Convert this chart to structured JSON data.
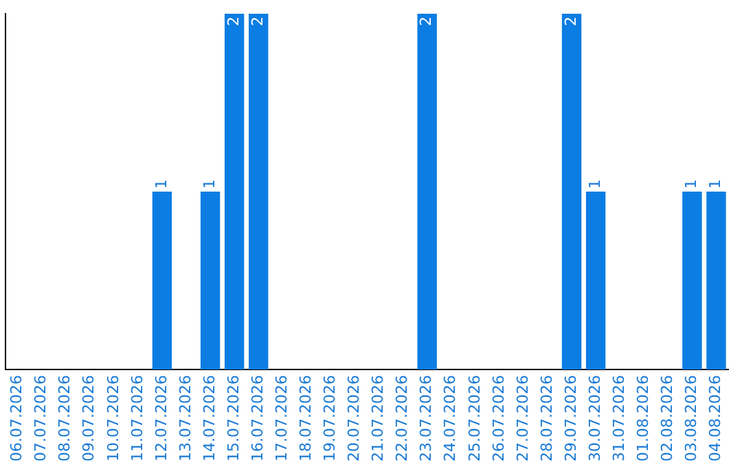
{
  "chart_data": {
    "type": "bar",
    "categories": [
      "06.07.2026",
      "07.07.2026",
      "08.07.2026",
      "09.07.2026",
      "10.07.2026",
      "11.07.2026",
      "12.07.2026",
      "13.07.2026",
      "14.07.2026",
      "15.07.2026",
      "16.07.2026",
      "17.07.2026",
      "18.07.2026",
      "19.07.2026",
      "20.07.2026",
      "21.07.2026",
      "22.07.2026",
      "23.07.2026",
      "24.07.2026",
      "25.07.2026",
      "26.07.2026",
      "27.07.2026",
      "28.07.2026",
      "29.07.2026",
      "30.07.2026",
      "31.07.2026",
      "01.08.2026",
      "02.08.2026",
      "03.08.2026",
      "04.08.2026"
    ],
    "values": [
      0,
      0,
      0,
      0,
      0,
      0,
      1,
      0,
      1,
      2,
      2,
      0,
      0,
      0,
      0,
      0,
      0,
      2,
      0,
      0,
      0,
      0,
      0,
      2,
      1,
      0,
      0,
      0,
      1,
      1
    ],
    "color": "#0b7de3",
    "ylim": [
      0,
      2
    ],
    "tick_labels": "x",
    "grid": false,
    "legend": false,
    "value_labels": [
      null,
      null,
      null,
      null,
      null,
      null,
      "1",
      null,
      "1",
      "2",
      "2",
      null,
      null,
      null,
      null,
      null,
      null,
      "2",
      null,
      null,
      null,
      null,
      null,
      "2",
      "1",
      null,
      null,
      null,
      "1",
      "1"
    ]
  }
}
